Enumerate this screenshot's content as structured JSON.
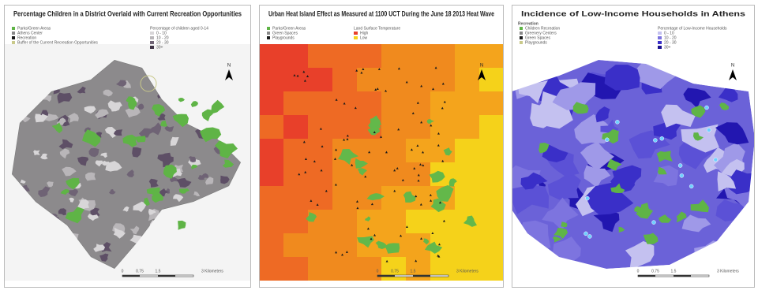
{
  "panels": [
    {
      "title": "Percentage Children in a District Overlaid with Current Recreation Opportunities",
      "legend": [
        "Parks/Green Areas",
        "Athens Center",
        "Recreation",
        "Buffer of the Current Recreation Opportunities"
      ],
      "legend_title": "Percentage of children aged 0-14",
      "classes": [
        "0 - 10",
        "10 - 20",
        "20 - 30",
        "30+"
      ],
      "scale": [
        "0",
        "0.75",
        "1.5",
        "3 Kilometers"
      ],
      "north": "N"
    },
    {
      "title": "Urban Heat Island Effect as Measured at 1100 UCT During the June 18 2013 Heat Wave",
      "legend": [
        "Parks/Green Areas",
        "Green Spaces",
        "Playgrounds"
      ],
      "legend_title": "Land Surface Temperature",
      "classes": [
        "High",
        "Low"
      ],
      "scale": [
        "0",
        "0.75",
        "1.5",
        "3 Kilometers"
      ],
      "north": "N"
    },
    {
      "title": "Incidence of Low-Income Households in Athens",
      "subtitle": "Recreation",
      "legend": [
        "Children Recreation",
        "Greenery Centers",
        "Green Spaces",
        "Playgrounds"
      ],
      "legend_title": "Percentage of Low-Income Households",
      "classes": [
        "0 - 10",
        "10 - 20",
        "20 - 30",
        "30+"
      ],
      "scale": [
        "0",
        "0.75",
        "1.5",
        "3 Kilometers"
      ],
      "north": "N"
    }
  ]
}
